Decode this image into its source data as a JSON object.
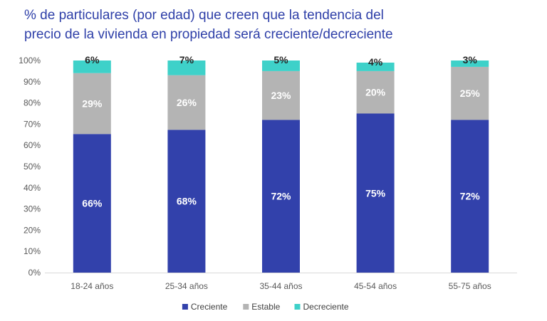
{
  "chart_data": {
    "type": "bar",
    "stacked": true,
    "title_lines": [
      "% de particulares (por edad) que creen que la tendencia del",
      "precio de la vivienda en propiedad será creciente/decreciente"
    ],
    "categories": [
      "18-24 años",
      "25-34 años",
      "35-44 años",
      "45-54 años",
      "55-75 años"
    ],
    "series": [
      {
        "name": "Creciente",
        "color": "#3241AB",
        "values": [
          66,
          68,
          72,
          75,
          72
        ],
        "labels": [
          "66%",
          "68%",
          "72%",
          "75%",
          "72%"
        ]
      },
      {
        "name": "Estable",
        "color": "#B4B4B4",
        "values": [
          29,
          26,
          23,
          20,
          25
        ],
        "labels": [
          "29%",
          "26%",
          "23%",
          "20%",
          "25%"
        ]
      },
      {
        "name": "Decreciente",
        "color": "#3ED1C9",
        "values": [
          6,
          7,
          5,
          4,
          3
        ],
        "labels": [
          "6%",
          "7%",
          "5%",
          "4%",
          "3%"
        ]
      }
    ],
    "yticks": [
      "0%",
      "10%",
      "20%",
      "30%",
      "40%",
      "50%",
      "60%",
      "70%",
      "80%",
      "90%",
      "100%"
    ],
    "ylim": [
      0,
      100
    ],
    "grid": false,
    "legend_position": "bottom"
  }
}
